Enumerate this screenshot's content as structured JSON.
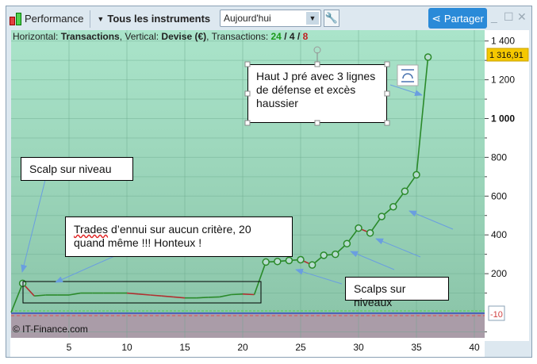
{
  "toolbar": {
    "title": "Performance",
    "instruments": "Tous les instruments",
    "period": "Aujourd'hui",
    "share": "Partager",
    "icons": [
      "candlestick-icon",
      "chevron-down-icon",
      "wrench-icon",
      "share-icon",
      "minimize-icon",
      "maximize-icon",
      "close-icon"
    ]
  },
  "info": {
    "h_label": "Horizontal: ",
    "h_value": "Transactions",
    "v_label": ", Vertical: ",
    "v_value": "Devise (€)",
    "t_label": ", Transactions: ",
    "wins": "24",
    "sep1": " / ",
    "flat": "4",
    "sep2": " / ",
    "losses": "8"
  },
  "copyright": "© IT-Finance.com",
  "last_value_label": "1 316,91",
  "zero_marker_label": "-10",
  "annotations": {
    "haut": "Haut J pré avec 3 lignes de défense et excès haussier",
    "scalp": "Scalp sur niveau",
    "trades_a": "Trades",
    "trades_b": " d’ennui sur aucun critère, 20 quand même !!! Honteux !",
    "scalps": "Scalps sur niveaux"
  },
  "colors": {
    "gain": "#2a8a2a",
    "loss": "#b03030",
    "arrow": "#6a9ee0",
    "bg_top": "#aae4ca",
    "bg_bottom": "#8cc6aa",
    "negative_zone": "#aa9ca8",
    "share": "#2a8ad8",
    "last_value_bg": "#f5c800"
  },
  "chart_data": {
    "type": "line",
    "x_ticks": [
      "5",
      "10",
      "15",
      "20",
      "25",
      "30",
      "35",
      "40"
    ],
    "y_ticks": [
      "1 400",
      "1 200",
      "1 000",
      "800",
      "600",
      "400",
      "200"
    ],
    "xlim": [
      0,
      41
    ],
    "ylim": [
      -120,
      1460
    ],
    "x": [
      0,
      1,
      2,
      3,
      4,
      5,
      6,
      7,
      8,
      9,
      10,
      11,
      12,
      13,
      14,
      15,
      16,
      17,
      18,
      19,
      20,
      21,
      22,
      23,
      24,
      25,
      26,
      27,
      28,
      29,
      30,
      31,
      32,
      33,
      34,
      35,
      36
    ],
    "y": [
      0,
      150,
      85,
      90,
      90,
      90,
      100,
      100,
      100,
      100,
      100,
      95,
      90,
      85,
      80,
      75,
      75,
      78,
      80,
      92,
      95,
      92,
      260,
      263,
      268,
      272,
      245,
      295,
      300,
      355,
      435,
      410,
      495,
      545,
      625,
      710,
      1316.91
    ],
    "markers_from": 22,
    "grid": true
  }
}
